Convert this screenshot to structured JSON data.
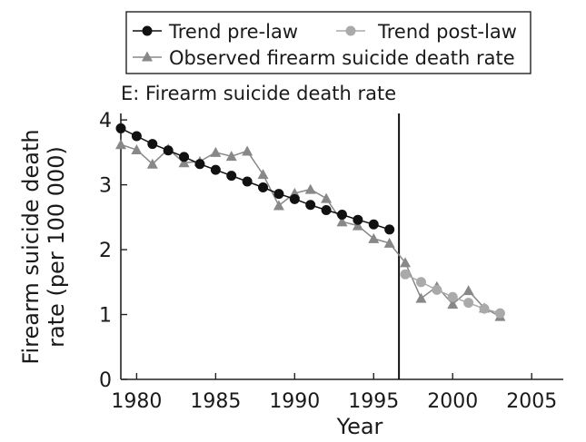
{
  "chart_data": {
    "type": "line",
    "title": "E: Firearm suicide death rate",
    "xlabel": "Year",
    "ylabel_line1": "Firearm suicide death",
    "ylabel_line2": "rate (per 100 000)",
    "xlim": [
      1979,
      2007
    ],
    "ylim": [
      0,
      4.1
    ],
    "x_ticks": [
      1980,
      1985,
      1990,
      1995,
      2000,
      2005
    ],
    "y_ticks": [
      0,
      1,
      2,
      3,
      4
    ],
    "law_year": 1996.6,
    "grid": false,
    "legend_position": "top",
    "legend": [
      {
        "label": "Trend pre-law",
        "marker": "circle",
        "color": "#111111"
      },
      {
        "label": "Trend post-law",
        "marker": "circle",
        "color": "#aaaaaa"
      },
      {
        "label": "Observed firearm suicide death rate",
        "marker": "triangle",
        "color": "#888888"
      }
    ],
    "series": [
      {
        "name": "Trend pre-law",
        "marker": "circle",
        "color": "#111111",
        "x": [
          1979,
          1980,
          1981,
          1982,
          1983,
          1984,
          1985,
          1986,
          1987,
          1988,
          1989,
          1990,
          1991,
          1992,
          1993,
          1994,
          1995,
          1996
        ],
        "y": [
          3.87,
          3.75,
          3.63,
          3.53,
          3.43,
          3.32,
          3.23,
          3.14,
          3.05,
          2.96,
          2.86,
          2.78,
          2.69,
          2.61,
          2.54,
          2.46,
          2.39,
          2.31
        ]
      },
      {
        "name": "Trend post-law",
        "marker": "circle",
        "color": "#aaaaaa",
        "x": [
          1997,
          1998,
          1999,
          2000,
          2001,
          2002,
          2003
        ],
        "y": [
          1.62,
          1.5,
          1.38,
          1.27,
          1.18,
          1.09,
          1.02
        ]
      },
      {
        "name": "Observed firearm suicide death rate",
        "marker": "triangle",
        "color": "#888888",
        "x": [
          1979,
          1980,
          1981,
          1982,
          1983,
          1984,
          1985,
          1986,
          1987,
          1988,
          1989,
          1990,
          1991,
          1992,
          1993,
          1994,
          1995,
          1996,
          1997,
          1998,
          1999,
          2000,
          2001,
          2002,
          2003
        ],
        "y": [
          3.62,
          3.54,
          3.32,
          3.55,
          3.34,
          3.36,
          3.5,
          3.44,
          3.52,
          3.16,
          2.68,
          2.87,
          2.93,
          2.79,
          2.43,
          2.37,
          2.17,
          2.1,
          1.8,
          1.25,
          1.43,
          1.16,
          1.37,
          1.1,
          0.97
        ]
      }
    ]
  }
}
